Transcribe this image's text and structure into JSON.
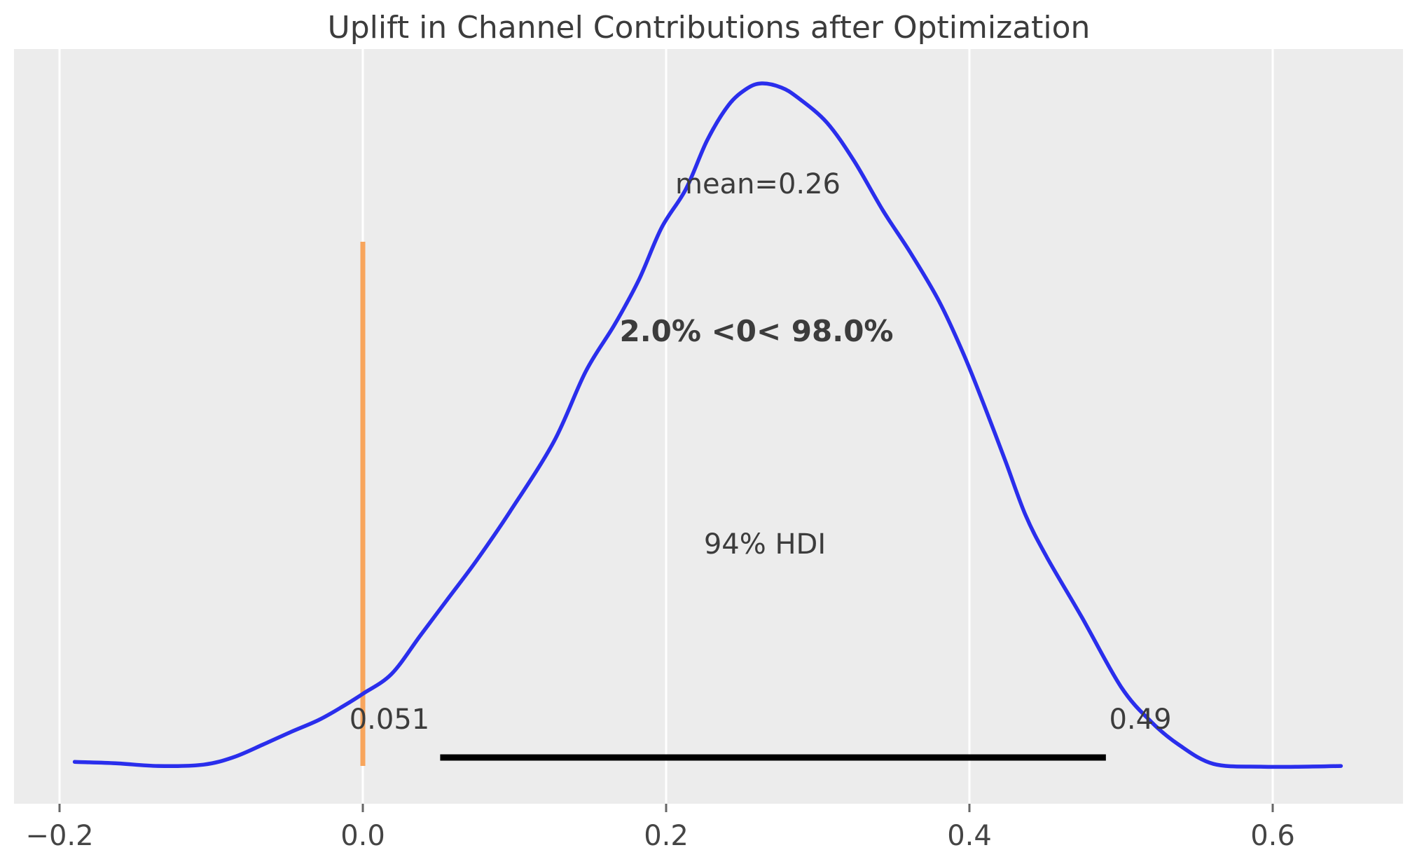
{
  "chart_data": {
    "type": "kde",
    "title": "Uplift in Channel Contributions after Optimization",
    "mean": {
      "value": 0.26,
      "label": "mean=0.26"
    },
    "ref_line": {
      "value": 0.0,
      "label": "2.0% <0< 98.0%",
      "pct_below": 2.0,
      "pct_above": 98.0
    },
    "hdi": {
      "prob": 0.94,
      "prob_label": "94% HDI",
      "lower": 0.051,
      "upper": 0.49,
      "lower_label": "0.051",
      "upper_label": "0.49"
    },
    "x_ticks": [
      {
        "value": -0.2,
        "label": "−0.2"
      },
      {
        "value": 0.0,
        "label": "0.0"
      },
      {
        "value": 0.2,
        "label": "0.2"
      },
      {
        "value": 0.4,
        "label": "0.4"
      },
      {
        "value": 0.6,
        "label": "0.6"
      }
    ],
    "x_range": [
      -0.19,
      0.645
    ],
    "grid": "vertical-only",
    "legend": "none",
    "density_points": [
      [
        -0.19,
        0.013
      ],
      [
        -0.163,
        0.011
      ],
      [
        -0.135,
        0.007
      ],
      [
        -0.105,
        0.009
      ],
      [
        -0.085,
        0.02
      ],
      [
        -0.066,
        0.038
      ],
      [
        -0.048,
        0.056
      ],
      [
        -0.029,
        0.074
      ],
      [
        -0.013,
        0.094
      ],
      [
        0.0,
        0.112
      ],
      [
        0.019,
        0.141
      ],
      [
        0.038,
        0.197
      ],
      [
        0.056,
        0.25
      ],
      [
        0.075,
        0.306
      ],
      [
        0.097,
        0.377
      ],
      [
        0.126,
        0.479
      ],
      [
        0.147,
        0.581
      ],
      [
        0.166,
        0.649
      ],
      [
        0.182,
        0.714
      ],
      [
        0.197,
        0.79
      ],
      [
        0.213,
        0.846
      ],
      [
        0.227,
        0.917
      ],
      [
        0.241,
        0.968
      ],
      [
        0.253,
        0.992
      ],
      [
        0.263,
        1.0
      ],
      [
        0.276,
        0.994
      ],
      [
        0.287,
        0.979
      ],
      [
        0.306,
        0.943
      ],
      [
        0.324,
        0.887
      ],
      [
        0.343,
        0.815
      ],
      [
        0.361,
        0.754
      ],
      [
        0.38,
        0.683
      ],
      [
        0.396,
        0.607
      ],
      [
        0.41,
        0.53
      ],
      [
        0.424,
        0.449
      ],
      [
        0.437,
        0.372
      ],
      [
        0.451,
        0.311
      ],
      [
        0.474,
        0.224
      ],
      [
        0.5,
        0.122
      ],
      [
        0.52,
        0.071
      ],
      [
        0.538,
        0.038
      ],
      [
        0.561,
        0.01
      ],
      [
        0.592,
        0.006
      ],
      [
        0.62,
        0.006
      ],
      [
        0.645,
        0.007
      ]
    ]
  },
  "colors": {
    "curve": "#2a2eec",
    "ref_line": "#f8a55c",
    "ref_text": "#f5800e",
    "hdi_bar": "#000000",
    "plot_bg": "#ececec",
    "gridline": "#ffffff",
    "tick_mark": "#666666",
    "text": "#3c3c3c"
  }
}
